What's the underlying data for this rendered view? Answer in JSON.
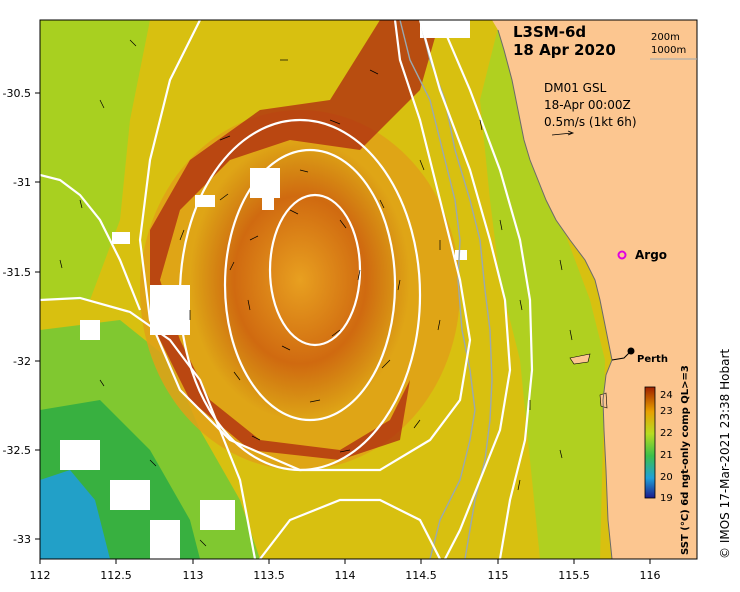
{
  "title_line1": "L3SM-6d",
  "title_line2": "18 Apr 2020",
  "scale_labels": [
    "200m",
    "1000m"
  ],
  "current_model": {
    "line1": "DM01 GSL",
    "line2": "18-Apr 00:00Z",
    "line3": "0.5m/s (1kt 6h)"
  },
  "argo_label": "Argo",
  "city_label": "Perth",
  "colorbar": {
    "title": "SST (°C) 6d ngt-only comp QL>=3",
    "min": 19,
    "max": 24,
    "ticks": [
      "19",
      "20",
      "21",
      "22",
      "23",
      "24"
    ],
    "colors": [
      "#1a1a8c",
      "#1fa0d8",
      "#3cc04a",
      "#b8dc20",
      "#e8a000",
      "#a02000"
    ]
  },
  "credit": "© IMOS 17-Mar-2021 23:38 Hobart",
  "axes": {
    "x_ticks": [
      "112",
      "112.5",
      "113",
      "113.5",
      "114",
      "114.5",
      "115",
      "115.5",
      "116"
    ],
    "y_ticks": [
      "-30.5",
      "-31",
      "-31.5",
      "-32",
      "-32.5",
      "-33"
    ]
  },
  "colors": {
    "land": "#fcc690",
    "contour": "#ffffff",
    "bathy": "#9aa8b0",
    "argo": "#e000e0"
  }
}
